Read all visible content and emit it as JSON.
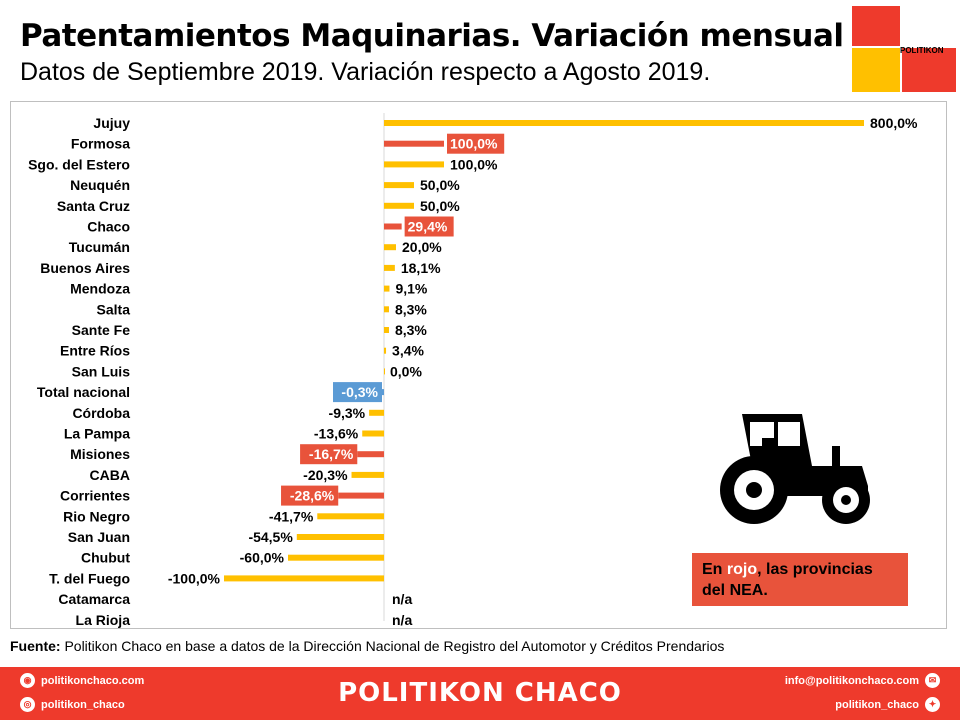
{
  "header": {
    "title": "Patentamientos Maquinarias. Variación mensual",
    "subtitle": "Datos de Septiembre 2019. Variación respecto a Agosto 2019."
  },
  "logo": {
    "text": "POLITIKON"
  },
  "chart_data": {
    "type": "bar",
    "orientation": "horizontal",
    "categories": [
      "Jujuy",
      "Formosa",
      "Sgo. del Estero",
      "Neuquén",
      "Santa Cruz",
      "Chaco",
      "Tucumán",
      "Buenos Aires",
      "Mendoza",
      "Salta",
      "Sante Fe",
      "Entre Ríos",
      "San Luis",
      "Total nacional",
      "Córdoba",
      "La Pampa",
      "Misiones",
      "CABA",
      "Corrientes",
      "Rio Negro",
      "San Juan",
      "Chubut",
      "T. del Fuego",
      "Catamarca",
      "La Rioja"
    ],
    "values": [
      800,
      100,
      100,
      50,
      50,
      29.4,
      20,
      18.1,
      9.1,
      8.3,
      8.3,
      3.4,
      0,
      -0.3,
      -9.3,
      -13.6,
      -16.7,
      -20.3,
      -28.6,
      -41.7,
      -54.5,
      -60,
      -100,
      null,
      null
    ],
    "labels": [
      "800,0%",
      "100,0%",
      "100,0%",
      "50,0%",
      "50,0%",
      "29,4%",
      "20,0%",
      "18,1%",
      "9,1%",
      "8,3%",
      "8,3%",
      "3,4%",
      "0,0%",
      "-0,3%",
      "-9,3%",
      "-13,6%",
      "-16,7%",
      "-20,3%",
      "-28,6%",
      "-41,7%",
      "-54,5%",
      "-60,0%",
      "-100,0%",
      "n/a",
      "n/a"
    ],
    "highlight": [
      "normal",
      "nea",
      "normal",
      "normal",
      "normal",
      "nea",
      "normal",
      "normal",
      "normal",
      "normal",
      "normal",
      "normal",
      "normal",
      "total",
      "normal",
      "normal",
      "nea",
      "normal",
      "nea",
      "normal",
      "normal",
      "normal",
      "normal",
      "normal",
      "normal"
    ],
    "colors": {
      "normal": "#ffc000",
      "nea": "#e8533b",
      "total": "#5b9bd5"
    },
    "xlim": [
      -100,
      800
    ]
  },
  "note": {
    "prefix": "En ",
    "highlight": "rojo",
    "suffix": ", las provincias del NEA."
  },
  "source": {
    "label": "Fuente:",
    "text": " Politikon Chaco en base a datos de la Dirección Nacional de Registro del Automotor y Créditos Prendarios"
  },
  "footer": {
    "brand": "POLITIKON CHACO",
    "website": "politikonchaco.com",
    "instagram": "politikon_chaco",
    "email": "info@politikonchaco.com",
    "twitter": "politikon_chaco"
  }
}
